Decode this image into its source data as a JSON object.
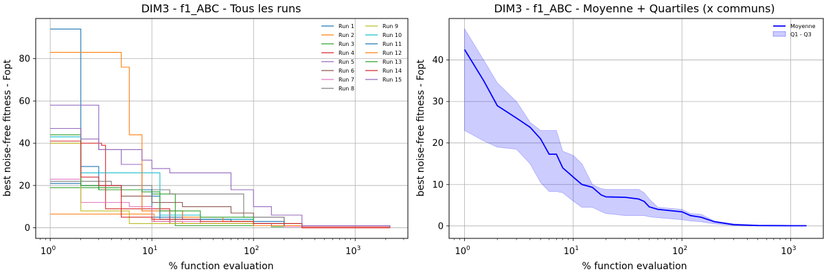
{
  "chart_data": [
    {
      "type": "line",
      "title": "DIM3 - f1_ABC  - Tous les runs",
      "xlabel": "% function evaluation",
      "ylabel": "best noise-free fitness - Fopt",
      "xscale": "log",
      "xlim": [
        0.72,
        3300
      ],
      "ylim": [
        -5,
        99
      ],
      "xticks": [
        1,
        10,
        100,
        1000
      ],
      "xtick_labels": [
        "10^0",
        "10^1",
        "10^2",
        "10^3"
      ],
      "yticks": [
        0,
        20,
        40,
        60,
        80
      ],
      "ytick_labels": [
        "0",
        "20",
        "40",
        "60",
        "80"
      ],
      "grid": true,
      "legend_position": "top-right",
      "legend_columns": 2,
      "series": [
        {
          "name": "Run 1",
          "color": "#1f77b4",
          "x": [
            1,
            2,
            3,
            10,
            20,
            100,
            200,
            2200
          ],
          "y": [
            94,
            29,
            18,
            5,
            4,
            2,
            0.5,
            0
          ]
        },
        {
          "name": "Run 2",
          "color": "#ff7f0e",
          "x": [
            1,
            10,
            10.5,
            20,
            100,
            300,
            2200
          ],
          "y": [
            6.5,
            6.5,
            3,
            2,
            1,
            0,
            0
          ]
        },
        {
          "name": "Run 3",
          "color": "#2ca02c",
          "x": [
            1,
            2,
            3,
            10,
            17,
            50,
            150,
            2200
          ],
          "y": [
            19,
            19,
            18,
            16,
            1,
            1,
            0.5,
            0
          ]
        },
        {
          "name": "Run 4",
          "color": "#d62728",
          "x": [
            1,
            3.2,
            3.5,
            7,
            15,
            50,
            100,
            300,
            2200
          ],
          "y": [
            40,
            39,
            9,
            9,
            2,
            2,
            1,
            0,
            0
          ]
        },
        {
          "name": "Run 5",
          "color": "#9467bd",
          "x": [
            1,
            2,
            3,
            5,
            8,
            20,
            50,
            100,
            150,
            2200
          ],
          "y": [
            58,
            58,
            37,
            30,
            8,
            4,
            4,
            2,
            1,
            0
          ]
        },
        {
          "name": "Run 6",
          "color": "#8c564b",
          "x": [
            1,
            2,
            3,
            5,
            10,
            20,
            40,
            60,
            100,
            200,
            300,
            2200
          ],
          "y": [
            47,
            20,
            20,
            15,
            12,
            10,
            10,
            7,
            5,
            2,
            0.5,
            0
          ]
        },
        {
          "name": "Run 7",
          "color": "#e377c2",
          "x": [
            1,
            2,
            4,
            6,
            10,
            30,
            200,
            2200
          ],
          "y": [
            23,
            12,
            12,
            10,
            3,
            2,
            0.5,
            0
          ]
        },
        {
          "name": "Run 8",
          "color": "#7f7f7f",
          "x": [
            1,
            3,
            4,
            10,
            15,
            40,
            80,
            200,
            2200
          ],
          "y": [
            22,
            22,
            20,
            18,
            16,
            16,
            5,
            1,
            0
          ]
        },
        {
          "name": "Run 9",
          "color": "#bcbd22",
          "x": [
            1,
            2,
            5,
            6,
            20,
            100,
            300,
            2200
          ],
          "y": [
            40,
            8,
            8,
            2,
            2,
            1,
            0.5,
            0
          ]
        },
        {
          "name": "Run 10",
          "color": "#17becf",
          "x": [
            1,
            2,
            6,
            9,
            12,
            30,
            100,
            300,
            2200
          ],
          "y": [
            43,
            26,
            26,
            26,
            6,
            4,
            1,
            0.5,
            0
          ]
        },
        {
          "name": "Run 11",
          "color": "#1f77b4",
          "x": [
            1,
            2,
            5,
            10,
            12,
            60,
            200,
            2200
          ],
          "y": [
            21,
            20,
            18,
            15,
            4,
            3,
            1,
            0
          ]
        },
        {
          "name": "Run 12",
          "color": "#ff7f0e",
          "x": [
            1,
            4,
            5,
            6,
            7.5,
            8,
            20,
            50,
            100,
            2200
          ],
          "y": [
            83,
            83,
            76,
            44,
            44,
            8,
            5,
            3,
            1,
            0
          ]
        },
        {
          "name": "Run 13",
          "color": "#2ca02c",
          "x": [
            1,
            2,
            3,
            5,
            8,
            12,
            30,
            100,
            300,
            2200
          ],
          "y": [
            44,
            20,
            19,
            18,
            17,
            8,
            5,
            2,
            0.5,
            0
          ]
        },
        {
          "name": "Run 14",
          "color": "#d62728",
          "x": [
            1,
            2,
            3,
            5,
            10,
            30,
            100,
            300,
            2200
          ],
          "y": [
            41,
            24,
            20,
            5,
            4,
            3,
            2,
            0.5,
            0
          ]
        },
        {
          "name": "Run 15",
          "color": "#9467bd",
          "x": [
            1,
            2,
            3,
            5,
            8,
            10,
            15,
            40,
            60,
            100,
            150,
            300,
            2200
          ],
          "y": [
            47,
            42,
            37,
            37,
            32,
            28,
            26,
            26,
            18,
            10,
            6,
            1,
            0
          ]
        }
      ]
    },
    {
      "type": "line",
      "title": "DIM3 - f1_ABC  - Moyenne + Quartiles (x communs)",
      "xlabel": "% function evaluation",
      "ylabel": "best noise-free fitness - Fopt",
      "xscale": "log",
      "xlim": [
        0.72,
        2000
      ],
      "ylim": [
        -3,
        50
      ],
      "xticks": [
        1,
        10,
        100,
        1000
      ],
      "xtick_labels": [
        "10^0",
        "10^1",
        "10^2",
        "10^3"
      ],
      "yticks": [
        0,
        10,
        20,
        30,
        40
      ],
      "ytick_labels": [
        "0",
        "10",
        "20",
        "30",
        "40"
      ],
      "grid": true,
      "legend_position": "top-right",
      "series": [
        {
          "name": "Moyenne",
          "color": "#0000ff",
          "x": [
            1,
            1.5,
            2,
            3,
            4,
            5,
            6,
            7,
            8,
            10,
            12,
            15,
            18,
            20,
            30,
            40,
            45,
            50,
            60,
            100,
            120,
            150,
            200,
            300,
            500,
            1000,
            1400
          ],
          "y": [
            42.5,
            35,
            29,
            26,
            23.8,
            21,
            17.3,
            17.3,
            14,
            11.8,
            10,
            9.3,
            7.5,
            7,
            6.9,
            6.5,
            5.9,
            4.6,
            4,
            3.4,
            2.5,
            2.1,
            1,
            0.3,
            0.1,
            0.05,
            0.05
          ]
        },
        {
          "name": "Q1 - Q3",
          "color": "#0000ff",
          "x": [
            1,
            1.5,
            2,
            3,
            4,
            5,
            6,
            7,
            8,
            10,
            12,
            15,
            18,
            20,
            30,
            40,
            45,
            50,
            60,
            100,
            120,
            150,
            200,
            300,
            500,
            1000,
            1400
          ],
          "q1": [
            23,
            20.5,
            19,
            18.5,
            15,
            10.5,
            8.3,
            8.3,
            8,
            6,
            4.5,
            4.5,
            3.5,
            3,
            2.5,
            2.5,
            2.5,
            2.2,
            2,
            1.5,
            1.2,
            1,
            0.5,
            0.1,
            0,
            0,
            0
          ],
          "q3": [
            47.5,
            40,
            34.5,
            30,
            25,
            23,
            23,
            23,
            18,
            17,
            15,
            10,
            9,
            8.8,
            8.8,
            8.8,
            8,
            6.5,
            4.5,
            4,
            3,
            2.8,
            1.2,
            0.5,
            0.2,
            0.1,
            0.1
          ]
        }
      ]
    }
  ]
}
